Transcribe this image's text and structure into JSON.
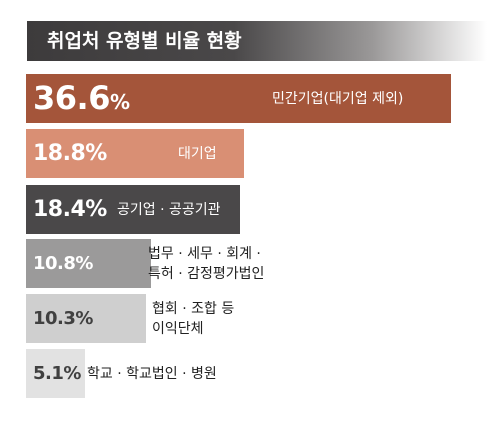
{
  "title": "취업처 유형별 비율 현황",
  "colors": {
    "title_bg": "#3d3b3c",
    "bars": [
      "#a4553a",
      "#d98f74",
      "#4a4849",
      "#9b9a9a",
      "#cfcfcf",
      "#e2e2e2"
    ]
  },
  "chart_data": {
    "type": "bar",
    "orientation": "horizontal",
    "title": "취업처 유형별 비율 현황",
    "unit": "%",
    "categories": [
      "민간기업(대기업 제외)",
      "대기업",
      "공기업 · 공공기관",
      "법무 · 세무 · 회계 · 특허 · 감정평가법인",
      "협회 · 조합 등 이익단체",
      "학교 · 학교법인 · 병원"
    ],
    "values": [
      36.6,
      18.8,
      18.4,
      10.8,
      10.3,
      5.1
    ],
    "value_labels": [
      "36.6",
      "18.8%",
      "18.4%",
      "10.8%",
      "10.3%",
      "5.1%"
    ],
    "value_unit_suffix": [
      "%",
      "",
      "",
      "",
      "",
      ""
    ],
    "label_lines": [
      [
        "민간기업(대기업 제외)"
      ],
      [
        "대기업"
      ],
      [
        "공기업 · 공공기관"
      ],
      [
        "법무 · 세무 · 회계 ·",
        "특허 · 감정평가법인"
      ],
      [
        "협회 · 조합 등",
        "이익단체"
      ],
      [
        "학교 · 학교법인 · 병원"
      ]
    ],
    "xlim": [
      0,
      36.6
    ],
    "grid": false,
    "legend": "none"
  }
}
